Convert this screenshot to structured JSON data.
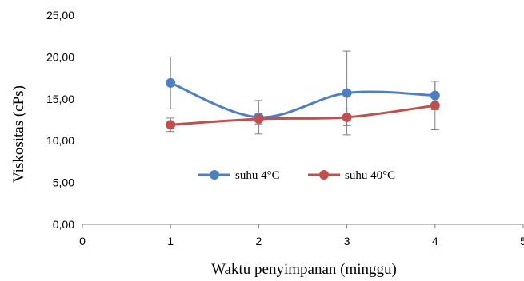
{
  "chart_data": {
    "type": "line",
    "title": "",
    "xlabel": "Waktu penyimpanan (minggu)",
    "ylabel": "Viskositas (cPs)",
    "xlim": [
      0,
      5
    ],
    "ylim": [
      0,
      25
    ],
    "x_ticks": [
      "0",
      "1",
      "2",
      "3",
      "4",
      "5"
    ],
    "y_ticks": [
      "0,00",
      "5,00",
      "10,00",
      "15,00",
      "20,00",
      "25,00"
    ],
    "grid": false,
    "legend_position": "center",
    "smoothed": true,
    "series": [
      {
        "name": "suhu 4°C",
        "color": "#4F7FC0",
        "x": [
          1,
          2,
          3,
          4
        ],
        "y": [
          16.9,
          12.8,
          15.7,
          15.4
        ],
        "error": [
          3.1,
          2.0,
          5.0,
          1.7
        ]
      },
      {
        "name": "suhu 40°C",
        "color": "#C0504D",
        "x": [
          1,
          2,
          3,
          4
        ],
        "y": [
          11.9,
          12.6,
          12.8,
          14.2
        ],
        "error": [
          0.8,
          0.6,
          1.0,
          2.9
        ]
      }
    ]
  }
}
